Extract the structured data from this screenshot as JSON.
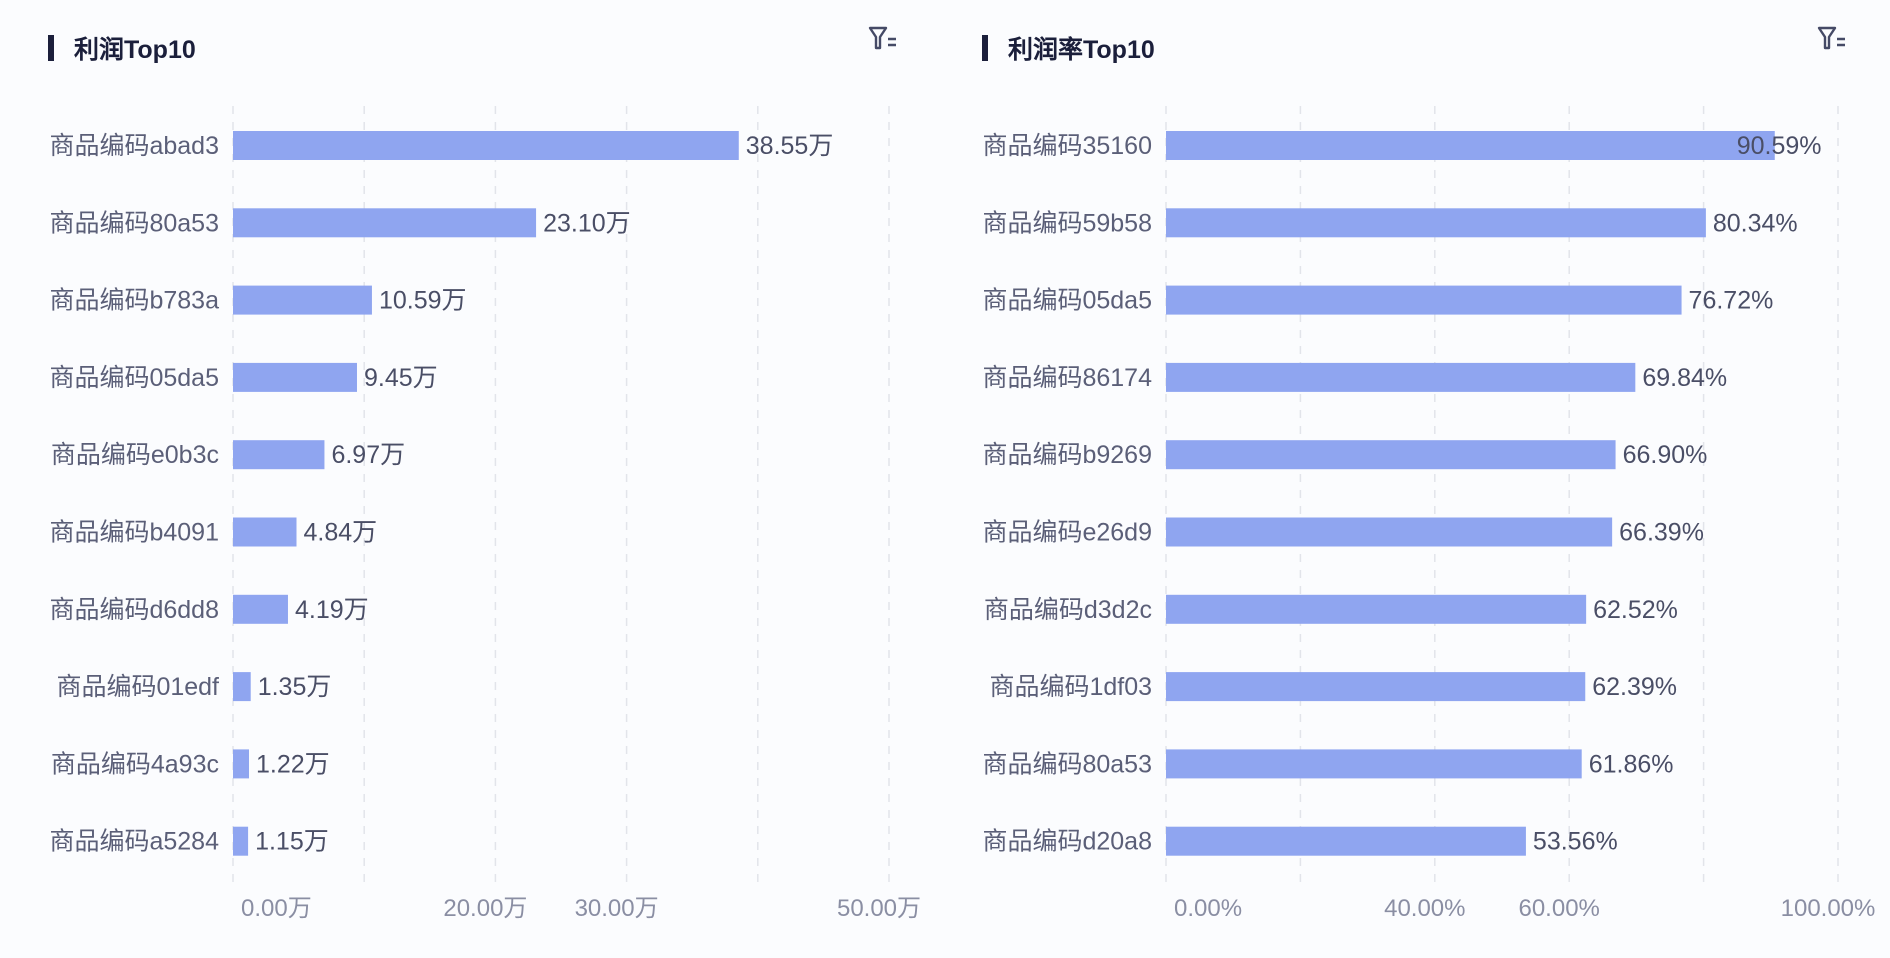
{
  "chart_data": [
    {
      "type": "bar",
      "orientation": "horizontal",
      "title": "利润Top10",
      "categories": [
        "商品编码abad3",
        "商品编码80a53",
        "商品编码b783a",
        "商品编码05da5",
        "商品编码e0b3c",
        "商品编码b4091",
        "商品编码d6dd8",
        "商品编码01edf",
        "商品编码4a93c",
        "商品编码a5284"
      ],
      "values": [
        38.55,
        23.1,
        10.59,
        9.45,
        6.97,
        4.84,
        4.19,
        1.35,
        1.22,
        1.15
      ],
      "data_labels": [
        "38.55万",
        "23.10万",
        "10.59万",
        "9.45万",
        "6.97万",
        "4.84万",
        "4.19万",
        "1.35万",
        "1.22万",
        "1.15万"
      ],
      "xlim": [
        0,
        50
      ],
      "grid_ticks": [
        0,
        10,
        20,
        30,
        40,
        50
      ],
      "tick_labels": [
        {
          "value": 0,
          "label": "0.00万"
        },
        {
          "value": 20,
          "label": "20.00万"
        },
        {
          "value": 30,
          "label": "30.00万"
        },
        {
          "value": 50,
          "label": "50.00万"
        }
      ],
      "grid": true,
      "bar_color": "#8fa5f0",
      "icon": "filter-icon"
    },
    {
      "type": "bar",
      "orientation": "horizontal",
      "title": "利润率Top10",
      "categories": [
        "商品编码35160",
        "商品编码59b58",
        "商品编码05da5",
        "商品编码86174",
        "商品编码b9269",
        "商品编码e26d9",
        "商品编码d3d2c",
        "商品编码1df03",
        "商品编码80a53",
        "商品编码d20a8"
      ],
      "values": [
        90.59,
        80.34,
        76.72,
        69.84,
        66.9,
        66.39,
        62.52,
        62.39,
        61.86,
        53.56
      ],
      "data_labels": [
        "90.59%",
        "80.34%",
        "76.72%",
        "69.84%",
        "66.90%",
        "66.39%",
        "62.52%",
        "62.39%",
        "61.86%",
        "53.56%"
      ],
      "xlim": [
        0,
        100
      ],
      "grid_ticks": [
        0,
        20,
        40,
        60,
        80,
        100
      ],
      "tick_labels": [
        {
          "value": 0,
          "label": "0.00%"
        },
        {
          "value": 40,
          "label": "40.00%"
        },
        {
          "value": 60,
          "label": "60.00%"
        },
        {
          "value": 100,
          "label": "100.00%"
        }
      ],
      "grid": true,
      "bar_color": "#8fa5f0",
      "icon": "filter-icon"
    }
  ]
}
